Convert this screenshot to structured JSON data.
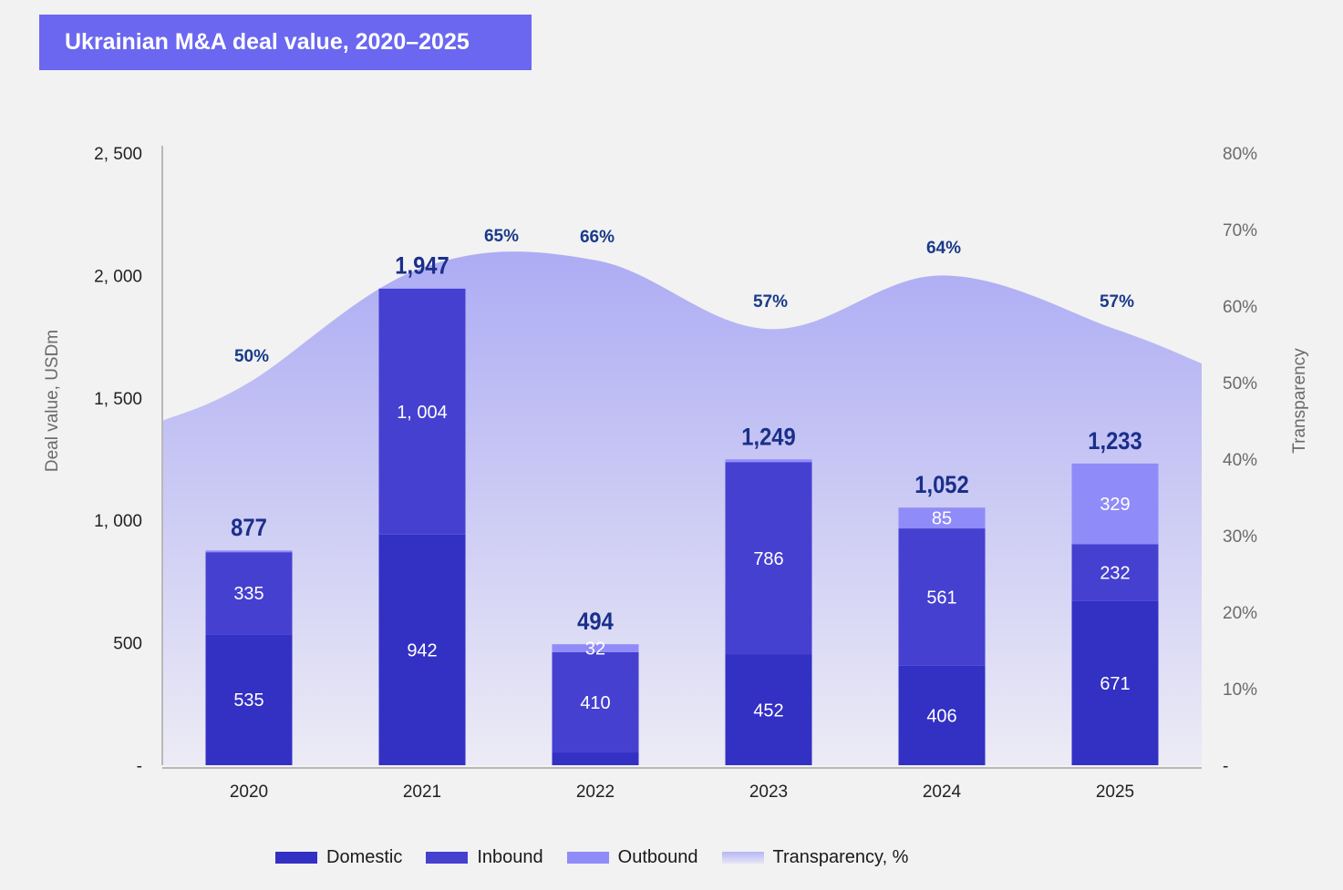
{
  "title": "Ukrainian M&A deal value, 2020–2025",
  "colors": {
    "domestic": "#3330c4",
    "inbound": "#4540d0",
    "outbound": "#8f8bf8",
    "transparency_top": "#adacf4",
    "transparency_bottom": "#ecebf5",
    "title_bg": "#6b67f0",
    "total_label": "#1a2f8a",
    "pct_label": "#1a3a8a"
  },
  "chart_data": {
    "type": "bar",
    "stacked": true,
    "categories": [
      "2020",
      "2021",
      "2022",
      "2023",
      "2024",
      "2025"
    ],
    "series": [
      {
        "name": "Domestic",
        "values": [
          535,
          942,
          52,
          452,
          406,
          671
        ],
        "labels": [
          "535",
          "942",
          "",
          "452",
          "406",
          "671"
        ]
      },
      {
        "name": "Inbound",
        "values": [
          335,
          1004,
          410,
          786,
          561,
          232
        ],
        "labels": [
          "335",
          "1, 004",
          "410",
          "786",
          "561",
          "232"
        ]
      },
      {
        "name": "Outbound",
        "values": [
          7,
          1,
          32,
          11,
          85,
          329
        ],
        "labels": [
          "",
          "",
          "32",
          "",
          "85",
          "329"
        ]
      }
    ],
    "totals": [
      "877",
      "1,947",
      "494",
      "1,249",
      "1,052",
      "1,233"
    ],
    "transparency": {
      "name": "Transparency, %",
      "type": "area",
      "points": [
        {
          "x": "2019.5",
          "value": 45
        },
        {
          "x": "2020",
          "value": 50,
          "label": "50%"
        },
        {
          "x": "2021",
          "value": 65,
          "label": "65%"
        },
        {
          "x": "2022",
          "value": 66,
          "label": "66%"
        },
        {
          "x": "2023",
          "value": 57,
          "label": "57%"
        },
        {
          "x": "2024",
          "value": 64,
          "label": "64%"
        },
        {
          "x": "2025",
          "value": 57,
          "label": "57%"
        }
      ]
    },
    "y_left": {
      "label": "Deal value, USDm",
      "range": [
        0,
        2500
      ],
      "ticks": [
        {
          "value": 0,
          "label": "-"
        },
        {
          "value": 500,
          "label": "500"
        },
        {
          "value": 1000,
          "label": "1, 000"
        },
        {
          "value": 1500,
          "label": "1, 500"
        },
        {
          "value": 2000,
          "label": "2, 000"
        },
        {
          "value": 2500,
          "label": "2, 500"
        }
      ]
    },
    "y_right": {
      "label": "Transparency",
      "range": [
        0,
        80
      ],
      "ticks": [
        {
          "value": 0,
          "label": "-"
        },
        {
          "value": 10,
          "label": "10%"
        },
        {
          "value": 20,
          "label": "20%"
        },
        {
          "value": 30,
          "label": "30%"
        },
        {
          "value": 40,
          "label": "40%"
        },
        {
          "value": 50,
          "label": "50%"
        },
        {
          "value": 60,
          "label": "60%"
        },
        {
          "value": 70,
          "label": "70%"
        },
        {
          "value": 80,
          "label": "80%"
        }
      ]
    },
    "grid": false,
    "legend_position": "bottom"
  },
  "legend": [
    {
      "name": "Domestic",
      "swatch": "domestic"
    },
    {
      "name": "Inbound",
      "swatch": "inbound"
    },
    {
      "name": "Outbound",
      "swatch": "outbound"
    },
    {
      "name": "Transparency, %",
      "swatch": "transparency"
    }
  ]
}
